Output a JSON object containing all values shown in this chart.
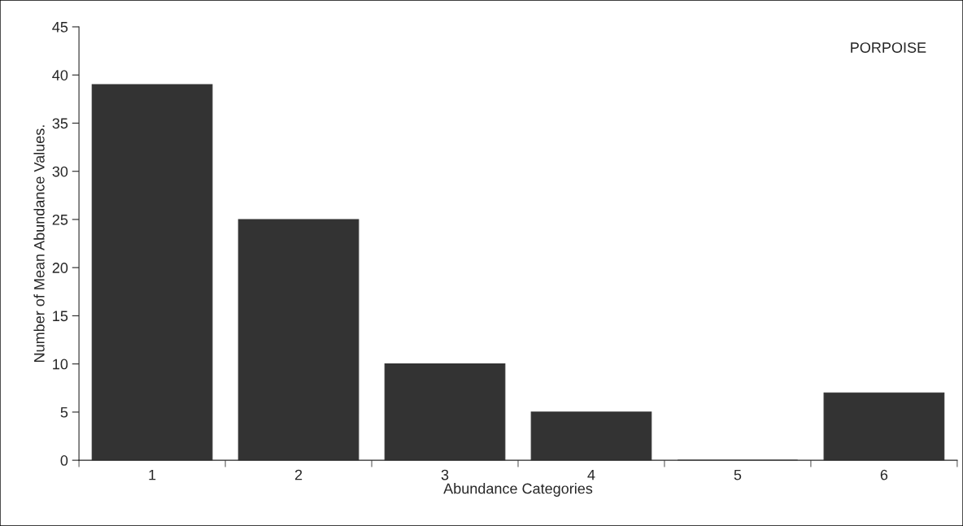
{
  "chart_data": {
    "type": "bar",
    "xlabel": "Abundance Categories",
    "ylabel": "Number of Mean Abundance Values.",
    "annotations": [
      "PORPOISE"
    ],
    "categories": [
      "1",
      "2",
      "3",
      "4",
      "5",
      "6"
    ],
    "values": [
      39,
      25,
      10,
      5,
      0,
      7
    ],
    "color": "#333333",
    "ylim": [
      0,
      45
    ],
    "yticks": [
      0,
      5,
      10,
      15,
      20,
      25,
      30,
      35,
      40,
      45
    ],
    "grid": false,
    "legend": false
  }
}
